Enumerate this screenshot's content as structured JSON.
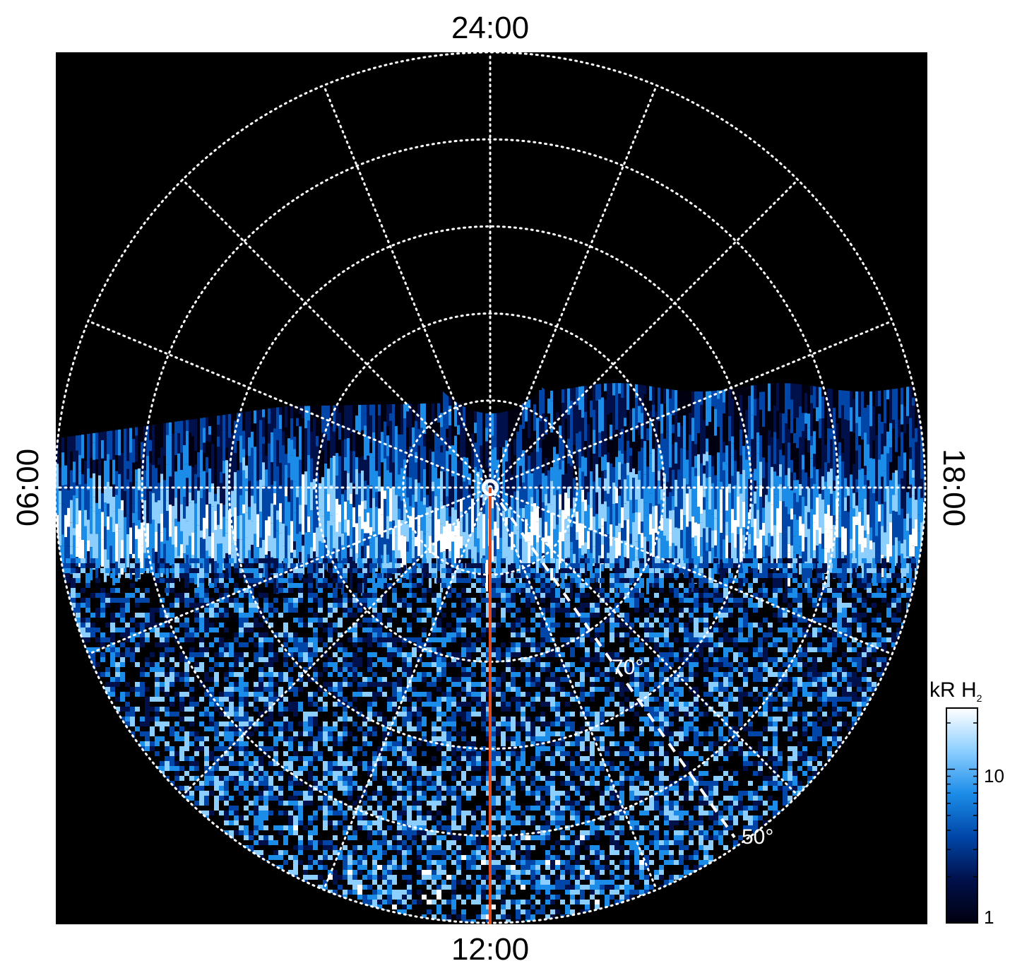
{
  "chart_data": {
    "type": "heatmap",
    "projection": "polar (south-up local-time dial)",
    "local_time_labels": {
      "top": "24:00",
      "bottom": "12:00",
      "left": "06:00",
      "right": "18:00"
    },
    "latitude_labels": [
      "70°",
      "50°"
    ],
    "latitude_circles_deg": [
      80,
      70,
      60,
      50
    ],
    "local_time_meridians_hours": [
      0,
      1.5,
      3,
      4.5,
      6,
      7.5,
      9,
      10.5,
      12,
      13.5,
      15,
      16.5,
      18,
      19.5,
      21,
      22.5
    ],
    "grid": "dotted white",
    "colorbar": {
      "title": "kR H",
      "title_subscript": "2",
      "scale": "log",
      "range": [
        1,
        25
      ],
      "tick_labels": [
        "10",
        "1"
      ],
      "colors": [
        "#000010",
        "#00104a",
        "#0046a8",
        "#1b8ce8",
        "#8ccfff",
        "#ffffff"
      ]
    },
    "highlight_line": {
      "color": "#e04a1e",
      "local_time": "12:00"
    }
  }
}
